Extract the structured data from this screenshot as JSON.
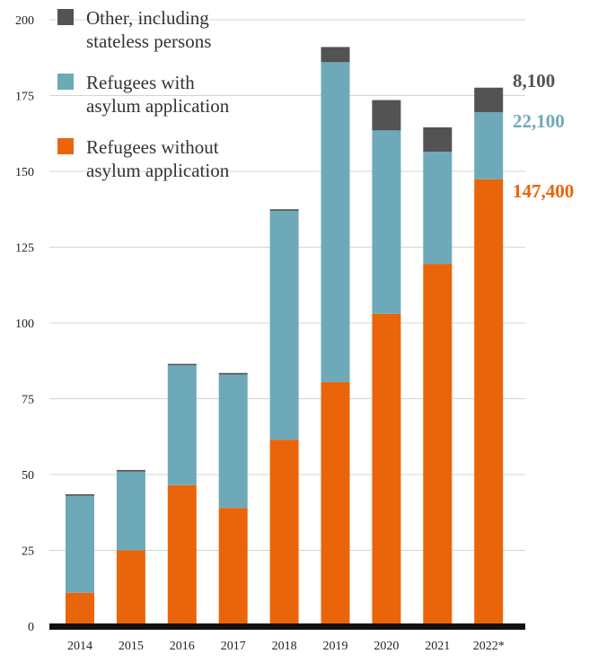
{
  "chart_data": {
    "type": "bar",
    "stacked": true,
    "title": "",
    "xlabel": "",
    "ylabel": "",
    "ylim": [
      0,
      200
    ],
    "yticks": [
      0,
      25,
      50,
      75,
      100,
      125,
      150,
      175,
      200
    ],
    "grid": true,
    "legend_position": "top-left",
    "categories": [
      "2014",
      "2015",
      "2016",
      "2017",
      "2018",
      "2019",
      "2020",
      "2021",
      "2022*"
    ],
    "series": [
      {
        "name": "Refugees without asylum application",
        "legend_label": [
          "Refugees without",
          "asylum application"
        ],
        "color": "#ea6509",
        "values": [
          11,
          25,
          46.5,
          39,
          61.5,
          80.5,
          103,
          119.5,
          147.4
        ],
        "end_label": "147,400"
      },
      {
        "name": "Refugees with asylum application",
        "legend_label": [
          "Refugees with",
          "asylum application"
        ],
        "color": "#6ea9b9",
        "values": [
          32,
          26,
          39.5,
          44,
          75.5,
          105.5,
          60.5,
          37,
          22.1
        ],
        "end_label": "22,100"
      },
      {
        "name": "Other, including stateless persons",
        "legend_label": [
          "Other, including",
          "stateless persons"
        ],
        "color": "#535353",
        "values": [
          0.5,
          0.5,
          0.5,
          0.5,
          0.5,
          5,
          10,
          8,
          8.1
        ],
        "end_label": "8,100"
      }
    ]
  }
}
